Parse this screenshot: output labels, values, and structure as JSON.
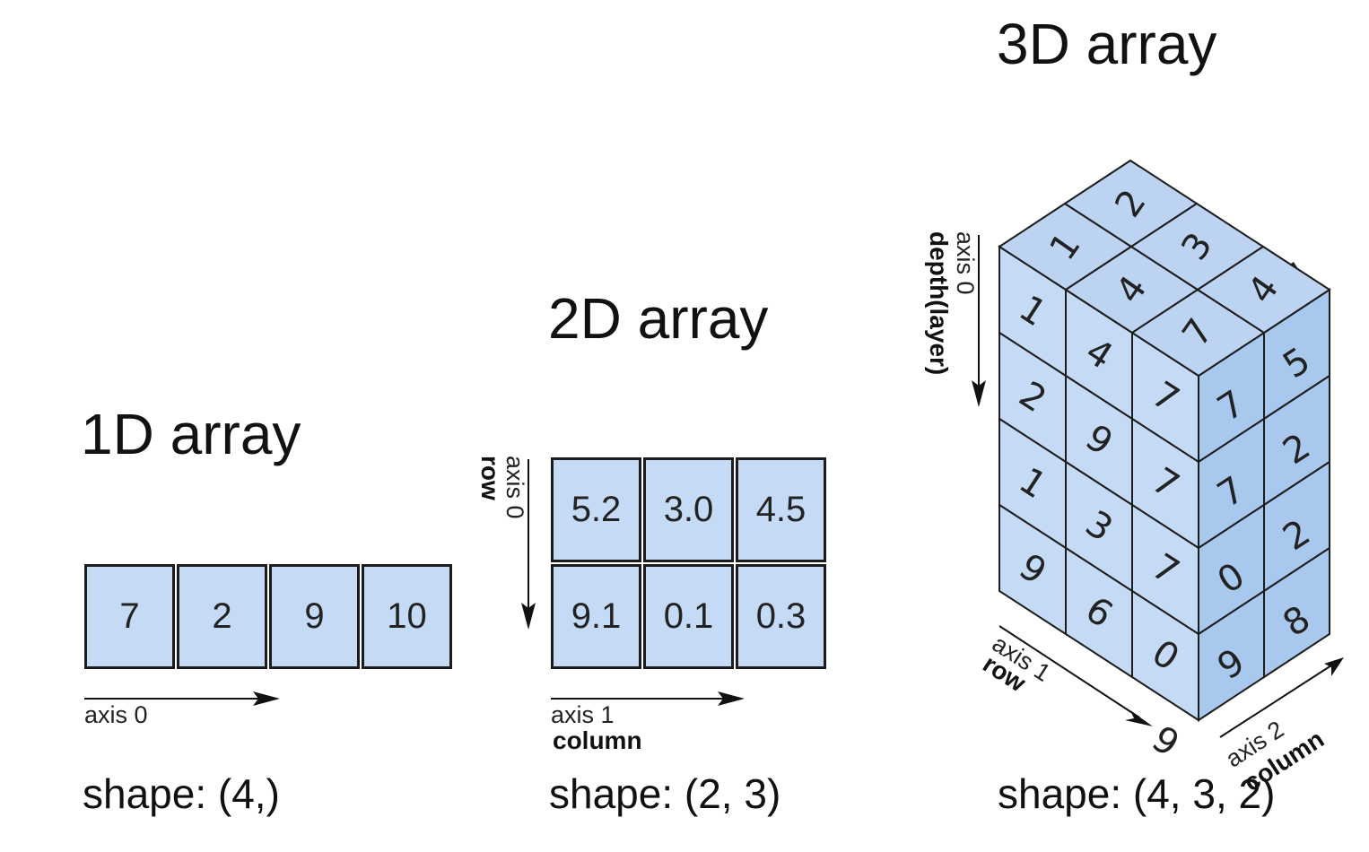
{
  "arrays": {
    "one_d": {
      "title": "1D array",
      "values": [
        "7",
        "2",
        "9",
        "10"
      ],
      "axis0_label": "axis 0",
      "shape": "shape: (4,)"
    },
    "two_d": {
      "title": "2D array",
      "rows": [
        [
          "5.2",
          "3.0",
          "4.5"
        ],
        [
          "9.1",
          "0.1",
          "0.3"
        ]
      ],
      "axis0_label": "axis 0",
      "axis0_name": "row",
      "axis1_label": "axis 1",
      "axis1_name": "column",
      "shape": "shape: (2, 3)"
    },
    "three_d": {
      "title": "3D array",
      "top_face": [
        "1",
        "2",
        "4",
        "3",
        "7",
        "4"
      ],
      "front_face": [
        [
          "1",
          "4",
          "7"
        ],
        [
          "2",
          "9",
          "7"
        ],
        [
          "1",
          "3",
          "7"
        ],
        [
          "9",
          "6",
          "0"
        ]
      ],
      "front_bottom_row_extra": [
        "9"
      ],
      "right_face": [
        [
          "7",
          "4"
        ],
        [
          "7",
          "5"
        ],
        [
          "7",
          "2"
        ],
        [
          "0",
          "2"
        ],
        [
          "9",
          "8"
        ]
      ],
      "axis0_label": "axis 0",
      "axis0_name": "depth(layer)",
      "axis1_label": "axis 1",
      "axis1_name": "row",
      "axis2_label": "axis 2",
      "axis2_name": "column",
      "shape": "shape: (4, 3, 2)"
    }
  },
  "colors": {
    "cell_fill": "#c5daf5",
    "cell_fill_right": "#a9c8ee",
    "cell_fill_top": "#bcd3f1",
    "stroke": "#1c1c1c"
  }
}
